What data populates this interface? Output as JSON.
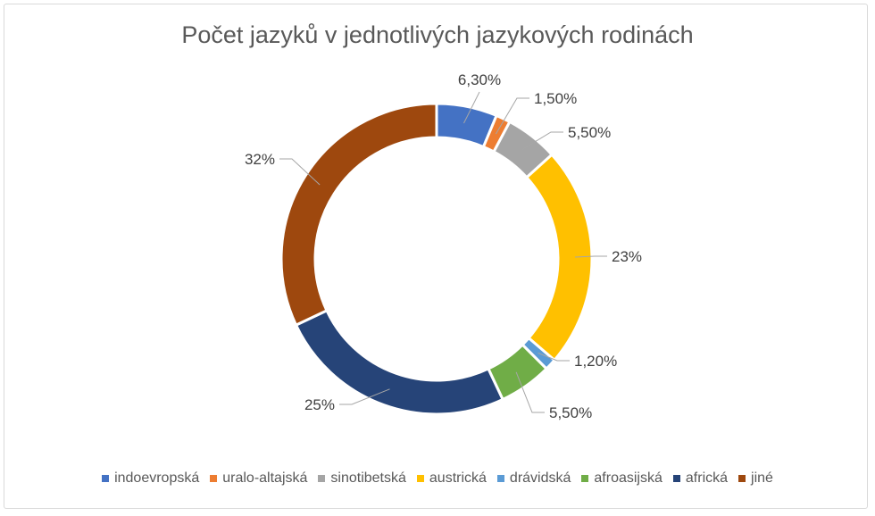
{
  "chart_data": {
    "type": "pie",
    "subtype": "donut",
    "title": "Počet jazyků v jednotlivých jazykových rodinách",
    "categories": [
      "indoevropská",
      "uralo-altajská",
      "sinotibetská",
      "austrická",
      "drávidská",
      "afroasijská",
      "africká",
      "jiné"
    ],
    "values": [
      6.3,
      1.5,
      5.5,
      23,
      1.2,
      5.5,
      25,
      32
    ],
    "data_labels": [
      "6,30%",
      "1,50%",
      "5,50%",
      "23%",
      "1,20%",
      "5,50%",
      "25%",
      "32%"
    ],
    "colors": [
      "#4472c4",
      "#ed7d31",
      "#a5a5a5",
      "#ffc000",
      "#5b9bd5",
      "#70ad47",
      "#264478",
      "#9e480e"
    ],
    "legend_position": "bottom"
  }
}
